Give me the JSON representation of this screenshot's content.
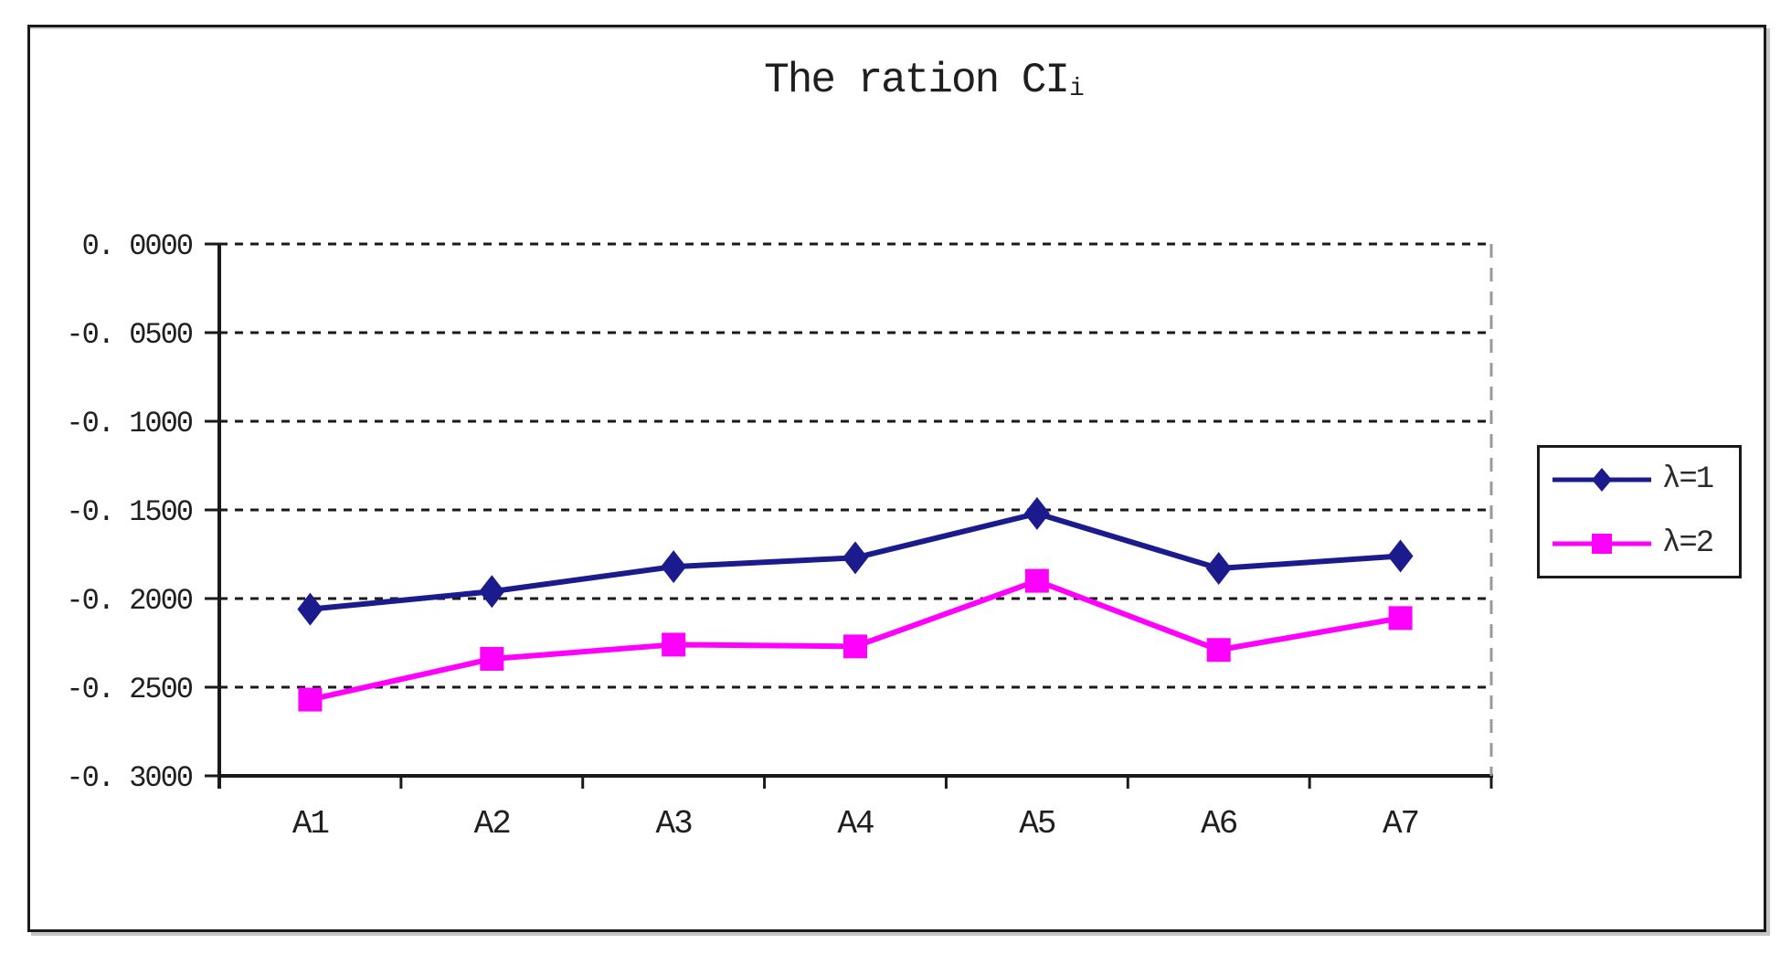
{
  "chart_data": {
    "type": "line",
    "title": "The ration CIi",
    "title_main": "The ration CI",
    "title_sub": "i",
    "categories": [
      "A1",
      "A2",
      "A3",
      "A4",
      "A5",
      "A6",
      "A7"
    ],
    "series": [
      {
        "name": "λ=1",
        "marker": "diamond",
        "color": "#1b1b8e",
        "values": [
          -0.206,
          -0.196,
          -0.182,
          -0.177,
          -0.152,
          -0.183,
          -0.176
        ]
      },
      {
        "name": "λ=2",
        "marker": "square",
        "color": "#ff00ff",
        "values": [
          -0.257,
          -0.234,
          -0.226,
          -0.227,
          -0.19,
          -0.229,
          -0.211
        ]
      }
    ],
    "ylim": [
      -0.3,
      0
    ],
    "ytick_step": 0.05,
    "ytick_labels": [
      "0. 0000",
      "-0. 0500",
      "-0. 1000",
      "-0. 1500",
      "-0. 2000",
      "-0. 2500",
      "-0. 3000"
    ],
    "xlabel": "",
    "ylabel": "",
    "grid": "horizontal-dashed",
    "legend_position": "right",
    "colors": {
      "axis": "#1a1a1a",
      "gridline": "#1a1a1a",
      "right_edge_dashed": "#9a9a9a",
      "background": "#ffffff",
      "series1": "#1b1b8e",
      "series2": "#ff00ff"
    }
  }
}
